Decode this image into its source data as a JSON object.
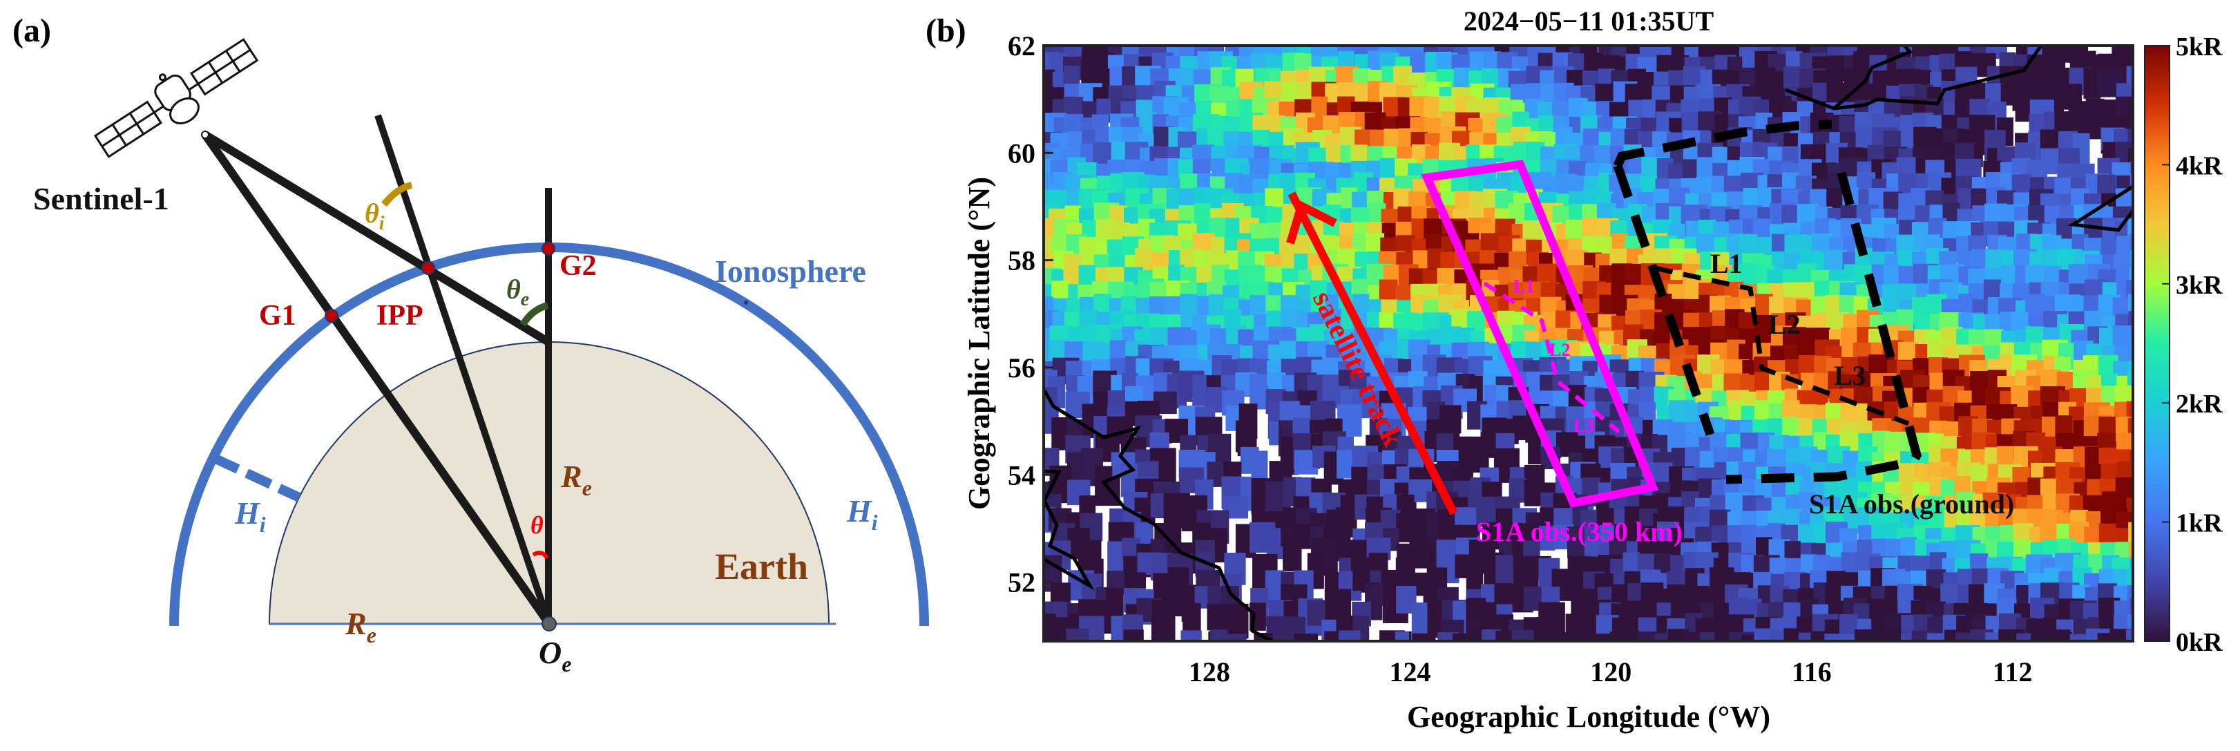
{
  "panel_a": {
    "label": "(a)",
    "satellite_name": "Sentinel-1",
    "ionosphere_label": "Ionosphere",
    "earth_label": "Earth",
    "points": {
      "g1": "G1",
      "ipp": "IPP",
      "g2": "G2",
      "center": "O",
      "center_sub": "e"
    },
    "angles": {
      "theta_i": "θ",
      "theta_i_sub": "i",
      "theta_e": "θ",
      "theta_e_sub": "e",
      "theta": "θ"
    },
    "radius_labels": {
      "re": "R",
      "re_sub": "e",
      "hi": "H",
      "hi_sub": "i"
    },
    "colors": {
      "ionosphere": "#4472C4",
      "earth_fill": "#E8E3D5",
      "point": "#C00000",
      "theta_i": "#BF9000",
      "theta_e": "#375623",
      "theta": "#FF0000",
      "earth_text": "#843C0C"
    }
  },
  "panel_b": {
    "label": "(b)",
    "title": "2024−05−11 01:35UT",
    "annotations": {
      "satellite_track": "satellite track",
      "s1a_350": "S1A obs.(350 km)",
      "s1a_ground": "S1A obs.(ground)",
      "ground_lines": [
        "L1",
        "L2",
        "L3"
      ],
      "iono_lines": [
        "L1",
        "L2",
        "L3"
      ]
    },
    "colors": {
      "track": "#FF0000",
      "box_350": "#FF00FF",
      "box_ground": "#000000"
    }
  },
  "chart_data": {
    "type": "heatmap",
    "title": "2024−05−11 01:35UT",
    "xlabel": "Geographic Longitude (°W)",
    "ylabel": "Geographic Latitude (°N)",
    "x_ticks": [
      "128",
      "124",
      "120",
      "116",
      "112"
    ],
    "x_tick_values": [
      128,
      124,
      120,
      116,
      112
    ],
    "y_ticks": [
      "62",
      "60",
      "58",
      "56",
      "54",
      "52"
    ],
    "y_tick_values": [
      62,
      60,
      58,
      56,
      54,
      52
    ],
    "xlim": [
      131.3,
      109.6
    ],
    "ylim": [
      50.9,
      62
    ],
    "colorbar": {
      "label_ticks": [
        "5kR",
        "4kR",
        "3kR",
        "2kR",
        "1kR",
        "0kR"
      ],
      "range": [
        0,
        5
      ],
      "unit": "kR",
      "colormap": "turbo"
    },
    "features": [
      {
        "name": "northern auroral arc",
        "lon_range": [
          128,
          121
        ],
        "lat_center": 61.0,
        "peak_kR": 5
      },
      {
        "name": "main auroral band",
        "lon_range": [
          123,
          109.6
        ],
        "lat_center_west": 59.5,
        "lat_center_east": 54.0,
        "peak_kR": 5
      },
      {
        "name": "diffuse low-emission region",
        "lon_range": [
          131,
          120
        ],
        "lat_range": [
          51,
          57
        ],
        "value_kR": 0.5
      }
    ],
    "overlays": {
      "satellite_track_arrow": {
        "from": [
          123.6,
          53.4
        ],
        "to": [
          126.8,
          59.4
        ]
      },
      "s1a_350km_box": [
        [
          122.9,
          59.5
        ],
        [
          121.0,
          59.8
        ],
        [
          118.4,
          54.0
        ],
        [
          120.0,
          53.7
        ]
      ],
      "s1a_ground_box": [
        [
          118.2,
          59.9
        ],
        [
          114.0,
          59.0
        ],
        [
          113.2,
          54.3
        ],
        [
          117.0,
          53.9
        ]
      ]
    }
  }
}
